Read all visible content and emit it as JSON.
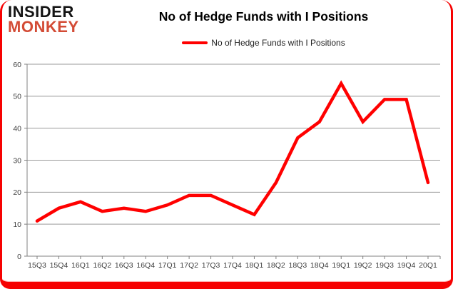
{
  "brand": {
    "line1": "INSIDER",
    "line2": "MONKEY"
  },
  "header": {
    "title": "No of Hedge Funds with I Positions"
  },
  "legend": {
    "label": "No of Hedge Funds with I Positions"
  },
  "colors": {
    "series": "#ff0000",
    "frame": "#f60202",
    "brand_accent": "#d34b35",
    "grid": "#9a9a9a",
    "axis": "#808080",
    "tick_text": "#3f3f3f"
  },
  "chart_data": {
    "type": "line",
    "title": "No of Hedge Funds with I Positions",
    "categories": [
      "15Q3",
      "15Q4",
      "16Q1",
      "16Q2",
      "16Q3",
      "16Q4",
      "17Q1",
      "17Q2",
      "17Q3",
      "17Q4",
      "18Q1",
      "18Q2",
      "18Q3",
      "18Q4",
      "19Q1",
      "19Q2",
      "19Q3",
      "19Q4",
      "20Q1"
    ],
    "series": [
      {
        "name": "No of Hedge Funds with I Positions",
        "color": "#ff0000",
        "values": [
          11,
          15,
          17,
          14,
          15,
          14,
          16,
          19,
          19,
          16,
          13,
          23,
          37,
          42,
          54,
          42,
          49,
          49,
          23
        ]
      }
    ],
    "xlabel": "",
    "ylabel": "",
    "ylim": [
      0,
      60
    ],
    "yticks": [
      0,
      10,
      20,
      30,
      40,
      50,
      60
    ],
    "grid": true,
    "legend_position": "top-center"
  }
}
